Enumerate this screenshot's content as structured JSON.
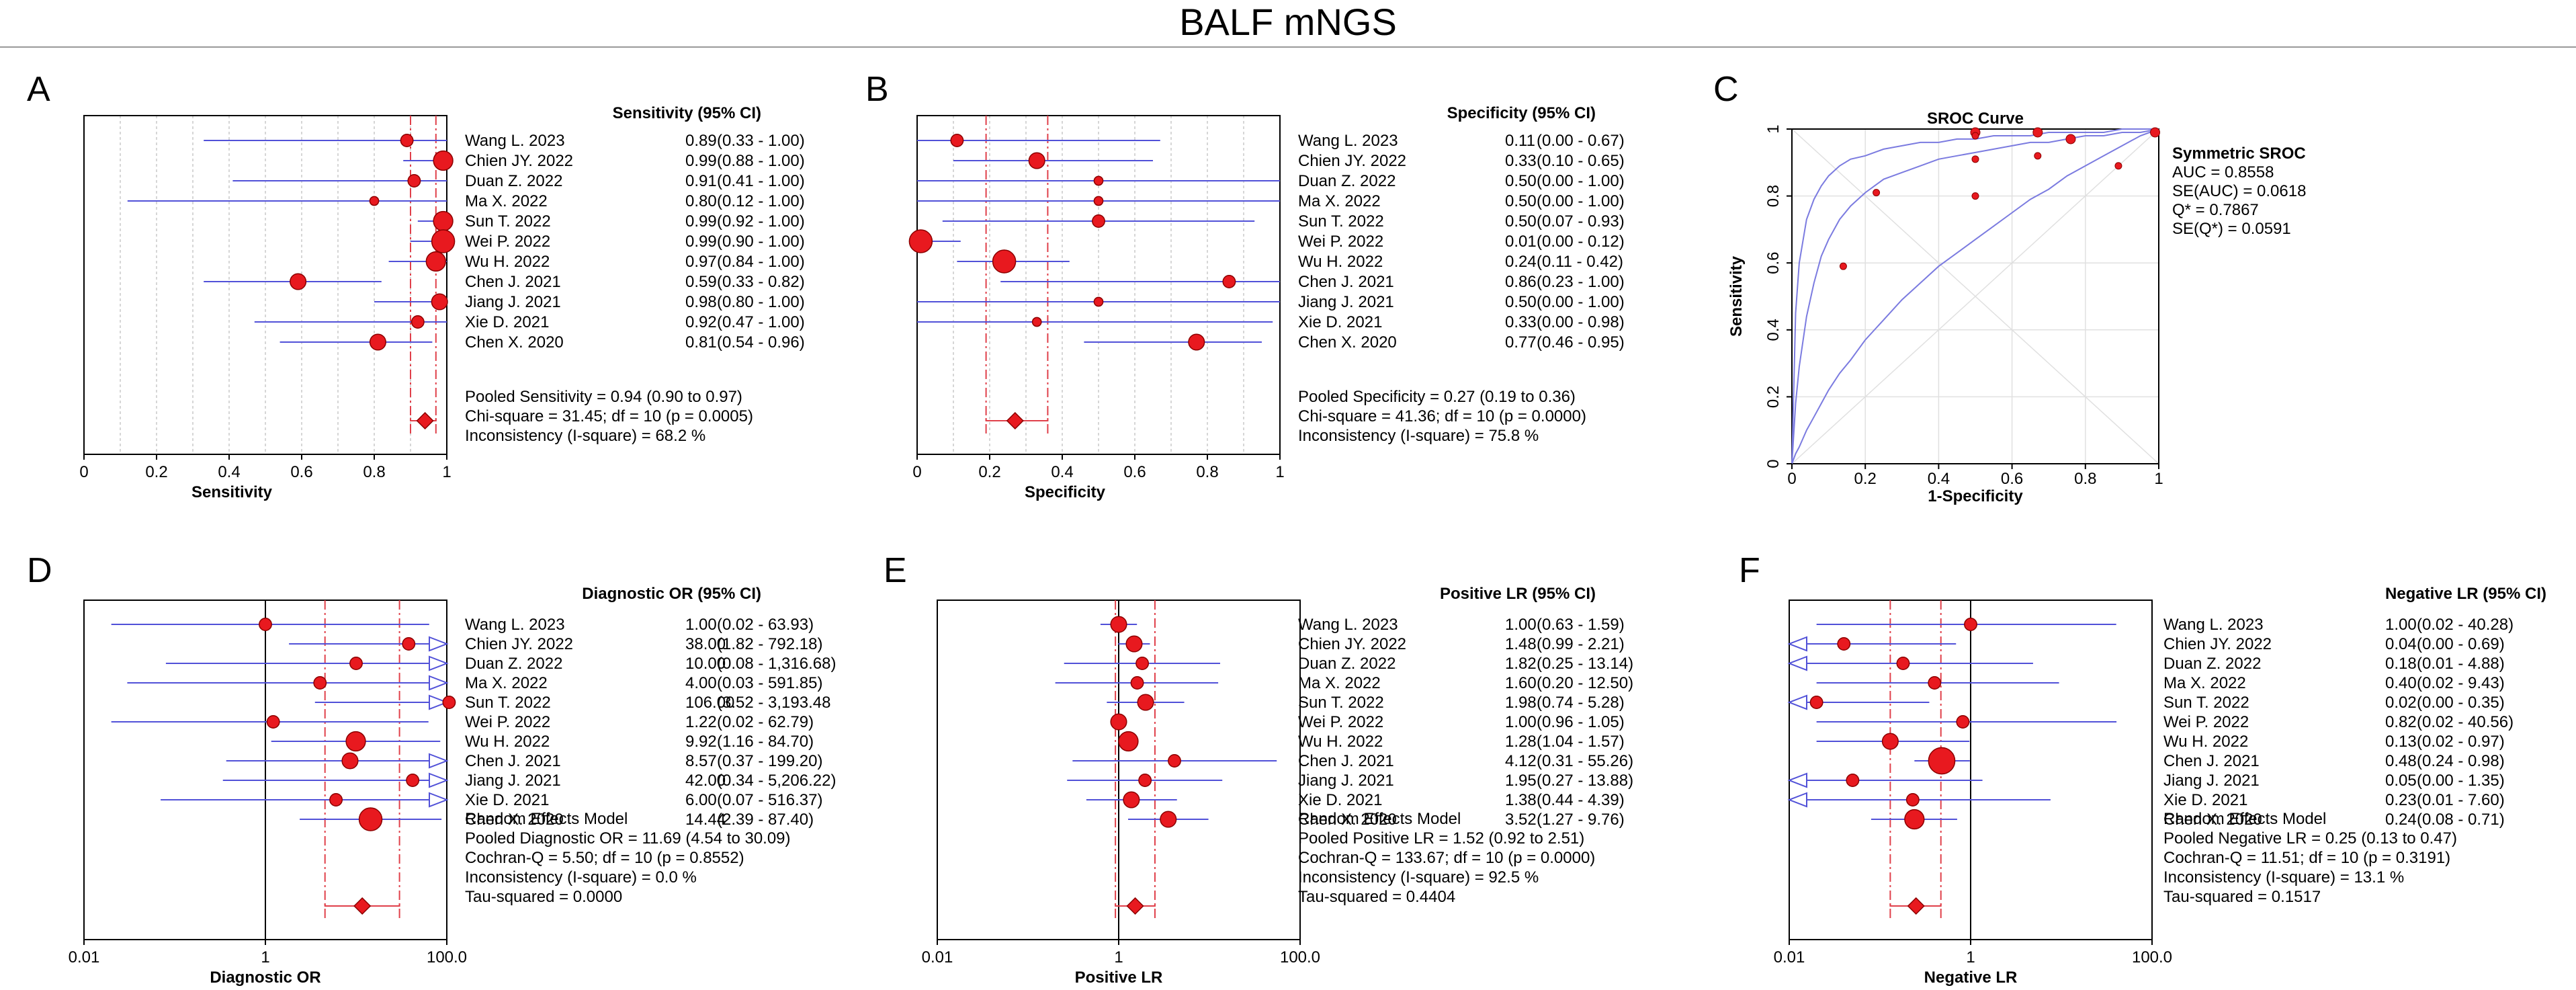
{
  "figure_title": "BALF mNGS",
  "colors": {
    "point": "#e8191f",
    "point_stroke": "#8b0000",
    "ci": "#5151d8",
    "pooled_line": "#e0404a",
    "diamond": "#e8191f",
    "grid": "#c8c8c8",
    "curve": "#7b7be0"
  },
  "chart_data": [
    {
      "panel": "A",
      "type": "forest",
      "scale": "linear",
      "axis_label": "Sensitivity",
      "ticks": [
        "0",
        "0.2",
        "0.4",
        "0.6",
        "0.8",
        "1"
      ],
      "tick_values": [
        0,
        0.2,
        0.4,
        0.6,
        0.8,
        1
      ],
      "column_header": "Sensitivity (95% CI)",
      "studies": [
        "Wang L. 2023",
        "Chien JY. 2022",
        "Duan Z. 2022",
        "Ma X. 2022",
        "Sun T. 2022",
        "Wei P. 2022",
        "Wu H. 2022",
        "Chen J. 2021",
        "Jiang J. 2021",
        "Xie D. 2021",
        "Chen X. 2020"
      ],
      "values": [
        0.89,
        0.99,
        0.91,
        0.8,
        0.99,
        0.99,
        0.97,
        0.59,
        0.98,
        0.92,
        0.81
      ],
      "lower": [
        0.33,
        0.88,
        0.41,
        0.12,
        0.92,
        0.9,
        0.84,
        0.33,
        0.8,
        0.47,
        0.54
      ],
      "upper": [
        1.0,
        1.0,
        1.0,
        1.0,
        1.0,
        1.0,
        1.0,
        0.82,
        1.0,
        1.0,
        0.96
      ],
      "weights": [
        2,
        4,
        2,
        1,
        4,
        5,
        4,
        3,
        3,
        2,
        3
      ],
      "value_labels": [
        "0.89",
        "0.99",
        "0.91",
        "0.80",
        "0.99",
        "0.99",
        "0.97",
        "0.59",
        "0.98",
        "0.92",
        "0.81"
      ],
      "ci_labels": [
        "(0.33 - 1.00)",
        "(0.88 - 1.00)",
        "(0.41 - 1.00)",
        "(0.12 - 1.00)",
        "(0.92 - 1.00)",
        "(0.90 - 1.00)",
        "(0.84 - 1.00)",
        "(0.33 - 0.82)",
        "(0.80 - 1.00)",
        "(0.47 - 1.00)",
        "(0.54 - 0.96)"
      ],
      "arrow_right": [
        false,
        false,
        false,
        false,
        false,
        false,
        false,
        false,
        false,
        false,
        false
      ],
      "arrow_left": [
        false,
        false,
        false,
        false,
        false,
        false,
        false,
        false,
        false,
        false,
        false
      ],
      "pooled": {
        "estimate": 0.94,
        "lower": 0.9,
        "upper": 0.97
      },
      "summary_lines": [
        "Pooled Sensitivity = 0.94 (0.90 to 0.97)",
        "Chi-square = 31.45; df =  10 (p = 0.0005)",
        "Inconsistency (I-square) = 68.2 %"
      ]
    },
    {
      "panel": "B",
      "type": "forest",
      "scale": "linear",
      "axis_label": "Specificity",
      "ticks": [
        "0",
        "0.2",
        "0.4",
        "0.6",
        "0.8",
        "1"
      ],
      "tick_values": [
        0,
        0.2,
        0.4,
        0.6,
        0.8,
        1
      ],
      "column_header": "Specificity (95% CI)",
      "studies": [
        "Wang L. 2023",
        "Chien JY. 2022",
        "Duan Z. 2022",
        "Ma X. 2022",
        "Sun T. 2022",
        "Wei P. 2022",
        "Wu H. 2022",
        "Chen J. 2021",
        "Jiang J. 2021",
        "Xie D. 2021",
        "Chen X. 2020"
      ],
      "values": [
        0.11,
        0.33,
        0.5,
        0.5,
        0.5,
        0.01,
        0.24,
        0.86,
        0.5,
        0.33,
        0.77
      ],
      "lower": [
        0.0,
        0.1,
        0.0,
        0.0,
        0.07,
        0.0,
        0.11,
        0.23,
        0.0,
        0.0,
        0.46
      ],
      "upper": [
        0.67,
        0.65,
        1.0,
        1.0,
        0.93,
        0.12,
        0.42,
        1.0,
        1.0,
        0.98,
        0.95
      ],
      "weights": [
        2,
        3,
        1,
        1,
        2,
        5,
        5,
        2,
        1,
        1,
        3
      ],
      "value_labels": [
        "0.11",
        "0.33",
        "0.50",
        "0.50",
        "0.50",
        "0.01",
        "0.24",
        "0.86",
        "0.50",
        "0.33",
        "0.77"
      ],
      "ci_labels": [
        "(0.00 - 0.67)",
        "(0.10 - 0.65)",
        "(0.00 - 1.00)",
        "(0.00 - 1.00)",
        "(0.07 - 0.93)",
        "(0.00 - 0.12)",
        "(0.11 - 0.42)",
        "(0.23 - 1.00)",
        "(0.00 - 1.00)",
        "(0.00 - 0.98)",
        "(0.46 - 0.95)"
      ],
      "arrow_right": [
        false,
        false,
        false,
        false,
        false,
        false,
        false,
        false,
        false,
        false,
        false
      ],
      "arrow_left": [
        false,
        false,
        false,
        false,
        false,
        false,
        false,
        false,
        false,
        false,
        false
      ],
      "pooled": {
        "estimate": 0.27,
        "lower": 0.19,
        "upper": 0.36
      },
      "summary_lines": [
        "Pooled Specificity = 0.27 (0.19 to 0.36)",
        "Chi-square = 41.36; df =  10 (p = 0.0000)",
        "Inconsistency (I-square) = 75.8 %"
      ]
    },
    {
      "panel": "C",
      "type": "sroc",
      "title": "SROC Curve",
      "xlabel": "1-Specificity",
      "ylabel": "Sensitivity",
      "xticks": [
        "0",
        "0.2",
        "0.4",
        "0.6",
        "0.8",
        "1"
      ],
      "yticks": [
        "0",
        "0.2",
        "0.4",
        "0.6",
        "0.8",
        "1"
      ],
      "points": [
        {
          "x": 0.89,
          "y": 0.89,
          "w": 1
        },
        {
          "x": 0.67,
          "y": 0.99,
          "w": 2
        },
        {
          "x": 0.5,
          "y": 0.91,
          "w": 1
        },
        {
          "x": 0.5,
          "y": 0.8,
          "w": 1
        },
        {
          "x": 0.5,
          "y": 0.99,
          "w": 2
        },
        {
          "x": 0.99,
          "y": 0.99,
          "w": 2
        },
        {
          "x": 0.76,
          "y": 0.97,
          "w": 2
        },
        {
          "x": 0.14,
          "y": 0.59,
          "w": 1
        },
        {
          "x": 0.5,
          "y": 0.98,
          "w": 1
        },
        {
          "x": 0.67,
          "y": 0.92,
          "w": 1
        },
        {
          "x": 0.23,
          "y": 0.81,
          "w": 1
        }
      ],
      "curve_fpr": [
        0.0,
        0.01,
        0.02,
        0.04,
        0.06,
        0.08,
        0.1,
        0.13,
        0.16,
        0.2,
        0.25,
        0.3,
        0.35,
        0.4,
        0.45,
        0.5,
        0.55,
        0.6,
        0.65,
        0.7,
        0.75,
        0.8,
        0.85,
        0.9,
        0.95,
        1.0
      ],
      "curve_mid": [
        0.0,
        0.18,
        0.29,
        0.44,
        0.54,
        0.62,
        0.67,
        0.73,
        0.77,
        0.81,
        0.85,
        0.87,
        0.89,
        0.91,
        0.92,
        0.93,
        0.94,
        0.95,
        0.96,
        0.96,
        0.97,
        0.98,
        0.98,
        0.99,
        0.99,
        1.0
      ],
      "curve_upper": [
        0.0,
        0.45,
        0.6,
        0.73,
        0.79,
        0.83,
        0.86,
        0.89,
        0.91,
        0.92,
        0.94,
        0.95,
        0.96,
        0.96,
        0.97,
        0.97,
        0.98,
        0.98,
        0.98,
        0.99,
        0.99,
        0.99,
        0.99,
        1.0,
        1.0,
        1.0
      ],
      "curve_lower": [
        0.0,
        0.03,
        0.05,
        0.1,
        0.14,
        0.18,
        0.22,
        0.27,
        0.31,
        0.37,
        0.43,
        0.49,
        0.54,
        0.59,
        0.63,
        0.67,
        0.71,
        0.75,
        0.79,
        0.82,
        0.86,
        0.89,
        0.92,
        0.95,
        0.98,
        1.0
      ],
      "stats_title": "Symmetric SROC",
      "stats": [
        "AUC = 0.8558",
        "SE(AUC) = 0.0618",
        "Q* = 0.7867",
        "SE(Q*) = 0.0591"
      ]
    },
    {
      "panel": "D",
      "type": "forest",
      "scale": "log",
      "axis_label": "Diagnostic OR",
      "ticks": [
        "0.01",
        "1",
        "100.0"
      ],
      "tick_values": [
        0.01,
        1,
        100
      ],
      "axis_min": 0.01,
      "axis_max": 100,
      "column_header": "Diagnostic OR (95% CI)",
      "studies": [
        "Wang L. 2023",
        "Chien JY. 2022",
        "Duan Z. 2022",
        "Ma X. 2022",
        "Sun T. 2022",
        "Wei P. 2022",
        "Wu H. 2022",
        "Chen J. 2021",
        "Jiang J. 2021",
        "Xie D. 2021",
        "Chen X. 2020"
      ],
      "values": [
        1.0,
        38.0,
        10.0,
        4.0,
        106.0,
        1.22,
        9.92,
        8.57,
        42.0,
        6.0,
        14.44
      ],
      "lower": [
        0.02,
        1.82,
        0.08,
        0.03,
        3.52,
        0.02,
        1.16,
        0.37,
        0.34,
        0.07,
        2.39
      ],
      "upper": [
        63.93,
        792.18,
        1316.68,
        591.85,
        3193.48,
        62.79,
        84.7,
        199.2,
        5206.22,
        516.37,
        87.4
      ],
      "weights": [
        2,
        2,
        2,
        2,
        2,
        2,
        4,
        3,
        2,
        2,
        5
      ],
      "value_labels": [
        "1.00",
        "38.00",
        "10.00",
        "4.00",
        "106.00",
        "1.22",
        "9.92",
        "8.57",
        "42.00",
        "6.00",
        "14.44"
      ],
      "ci_labels": [
        "(0.02 - 63.93)",
        "(1.82 - 792.18)",
        "(0.08 - 1,316.68)",
        "(0.03 - 591.85)",
        "(3.52 - 3,193.48",
        "(0.02 - 62.79)",
        "(1.16 - 84.70)",
        "(0.37 - 199.20)",
        "(0.34 - 5,206.22)",
        "(0.07 - 516.37)",
        "(2.39 - 87.40)"
      ],
      "arrow_right": [
        false,
        true,
        true,
        true,
        true,
        false,
        false,
        true,
        true,
        true,
        false
      ],
      "arrow_left": [
        false,
        false,
        false,
        false,
        false,
        false,
        false,
        false,
        false,
        false,
        false
      ],
      "pooled": {
        "estimate": 11.69,
        "lower": 4.54,
        "upper": 30.09
      },
      "summary_lines": [
        "Random Effects Model",
        "Pooled Diagnostic OR = 11.69 (4.54 to 30.09)",
        "Cochran-Q = 5.50; df =  10 (p = 0.8552)",
        "Inconsistency (I-square) = 0.0 %",
        "Tau-squared = 0.0000"
      ]
    },
    {
      "panel": "E",
      "type": "forest",
      "scale": "log",
      "axis_label": "Positive LR",
      "ticks": [
        "0.01",
        "1",
        "100.0"
      ],
      "tick_values": [
        0.01,
        1,
        100
      ],
      "axis_min": 0.01,
      "axis_max": 100,
      "column_header": "Positive LR (95% CI)",
      "studies": [
        "Wang L. 2023",
        "Chien JY. 2022",
        "Duan Z. 2022",
        "Ma X. 2022",
        "Sun T. 2022",
        "Wei P. 2022",
        "Wu H. 2022",
        "Chen J. 2021",
        "Jiang J. 2021",
        "Xie D. 2021",
        "Chen X. 2020"
      ],
      "values": [
        1.0,
        1.48,
        1.82,
        1.6,
        1.98,
        1.0,
        1.28,
        4.12,
        1.95,
        1.38,
        3.52
      ],
      "lower": [
        0.63,
        0.99,
        0.25,
        0.2,
        0.74,
        0.96,
        1.04,
        0.31,
        0.27,
        0.44,
        1.27
      ],
      "upper": [
        1.59,
        2.21,
        13.14,
        12.5,
        5.28,
        1.05,
        1.57,
        55.26,
        13.88,
        4.39,
        9.76
      ],
      "weights": [
        3,
        3,
        2,
        2,
        3,
        3,
        4,
        2,
        2,
        3,
        3
      ],
      "value_labels": [
        "1.00",
        "1.48",
        "1.82",
        "1.60",
        "1.98",
        "1.00",
        "1.28",
        "4.12",
        "1.95",
        "1.38",
        "3.52"
      ],
      "ci_labels": [
        "(0.63 - 1.59)",
        "(0.99 - 2.21)",
        "(0.25 - 13.14)",
        "(0.20 - 12.50)",
        "(0.74 - 5.28)",
        "(0.96 - 1.05)",
        "(1.04 - 1.57)",
        "(0.31 - 55.26)",
        "(0.27 - 13.88)",
        "(0.44 - 4.39)",
        "(1.27 - 9.76)"
      ],
      "arrow_right": [
        false,
        false,
        false,
        false,
        false,
        false,
        false,
        false,
        false,
        false,
        false
      ],
      "arrow_left": [
        false,
        false,
        false,
        false,
        false,
        false,
        false,
        false,
        false,
        false,
        false
      ],
      "pooled": {
        "estimate": 1.52,
        "lower": 0.92,
        "upper": 2.51
      },
      "summary_lines": [
        "Random Effects Model",
        "Pooled Positive LR = 1.52 (0.92 to 2.51)",
        "Cochran-Q = 133.67; df =  10 (p = 0.0000)",
        "Inconsistency (I-square) = 92.5 %",
        "Tau-squared = 0.4404"
      ]
    },
    {
      "panel": "F",
      "type": "forest",
      "scale": "log",
      "axis_label": "Negative LR",
      "ticks": [
        "0.01",
        "1",
        "100.0"
      ],
      "tick_values": [
        0.01,
        1,
        100
      ],
      "axis_min": 0.01,
      "axis_max": 100,
      "column_header": "Negative LR (95% CI)",
      "studies": [
        "Wang L. 2023",
        "Chien JY. 2022",
        "Duan Z. 2022",
        "Ma X. 2022",
        "Sun T. 2022",
        "Wei P. 2022",
        "Wu H. 2022",
        "Chen J. 2021",
        "Jiang J. 2021",
        "Xie D. 2021",
        "Chen X. 2020"
      ],
      "values": [
        1.0,
        0.04,
        0.18,
        0.4,
        0.02,
        0.82,
        0.13,
        0.48,
        0.05,
        0.23,
        0.24
      ],
      "lower": [
        0.02,
        0.0,
        0.01,
        0.02,
        0.0,
        0.02,
        0.02,
        0.24,
        0.0,
        0.01,
        0.08
      ],
      "upper": [
        40.28,
        0.69,
        4.88,
        9.43,
        0.35,
        40.56,
        0.97,
        0.98,
        1.35,
        7.6,
        0.71
      ],
      "weights": [
        2,
        2,
        2,
        2,
        2,
        2,
        3,
        6,
        2,
        2,
        4
      ],
      "value_labels": [
        "1.00",
        "0.04",
        "0.18",
        "0.40",
        "0.02",
        "0.82",
        "0.13",
        "0.48",
        "0.05",
        "0.23",
        "0.24"
      ],
      "ci_labels": [
        "(0.02 - 40.28)",
        "(0.00 - 0.69)",
        "(0.01 - 4.88)",
        "(0.02 - 9.43)",
        "(0.00 - 0.35)",
        "(0.02 - 40.56)",
        "(0.02 - 0.97)",
        "(0.24 - 0.98)",
        "(0.00 - 1.35)",
        "(0.01 - 7.60)",
        "(0.08 - 0.71)"
      ],
      "arrow_right": [
        false,
        false,
        false,
        false,
        false,
        false,
        false,
        false,
        false,
        false,
        false
      ],
      "arrow_left": [
        false,
        true,
        true,
        false,
        true,
        false,
        false,
        false,
        true,
        true,
        false
      ],
      "pooled": {
        "estimate": 0.25,
        "lower": 0.13,
        "upper": 0.47
      },
      "summary_lines": [
        "Random Effects Model",
        "Pooled Negative LR = 0.25 (0.13 to 0.47)",
        "Cochran-Q = 11.51; df =  10 (p = 0.3191)",
        "Inconsistency (I-square) = 13.1 %",
        "Tau-squared = 0.1517"
      ]
    }
  ]
}
